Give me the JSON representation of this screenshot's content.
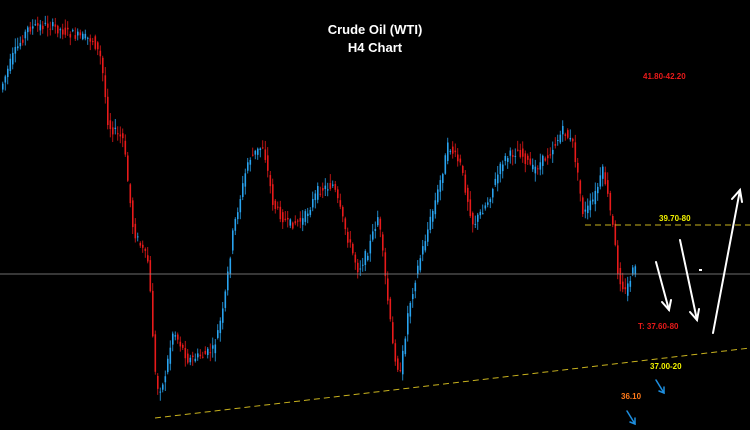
{
  "chart_data": {
    "type": "candlestick",
    "title": "Crude Oil (WTI)",
    "subtitle": "H4 Chart",
    "colors": {
      "bull": "#29a3ef",
      "bear": "#e81a1a",
      "background": "#000000",
      "level_line": "#c8b21e",
      "trendline": "#c8b21e",
      "price_line": "#8a8a8a",
      "arrow_main": "#ffffff",
      "arrow_alt": "#1e8fe0"
    },
    "grid": false,
    "annotations": [
      {
        "text": "41.80-42.20",
        "color": "#e81a1a"
      },
      {
        "text": "39.70-80",
        "color": "#f2f200"
      },
      {
        "text": "T: 37.60-80",
        "color": "#e81a1a"
      },
      {
        "text": "37.00-20",
        "color": "#f2f200"
      },
      {
        "text": "36.10",
        "color": "#ff7a1a"
      }
    ],
    "levels": [
      {
        "name": "39.70-80",
        "style": "dashed"
      },
      {
        "name": "rising support trendline",
        "style": "dashed"
      },
      {
        "name": "current price",
        "style": "solid"
      }
    ],
    "arrows": [
      {
        "color": "white",
        "direction": "down"
      },
      {
        "color": "white",
        "direction": "down"
      },
      {
        "color": "white",
        "direction": "up"
      },
      {
        "color": "blue",
        "direction": "down"
      },
      {
        "color": "blue",
        "direction": "down"
      }
    ]
  }
}
